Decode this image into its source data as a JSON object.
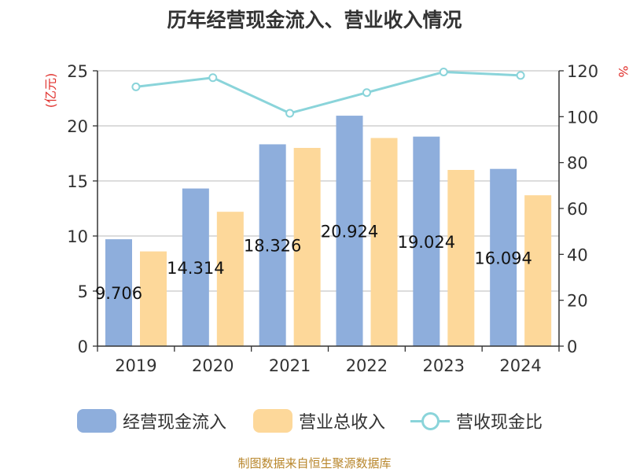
{
  "title": "历年经营现金流入、营业收入情况",
  "source": "制图数据来自恒生聚源数据库",
  "colors": {
    "cash_inflow": "#8eaedc",
    "revenue": "#fdd89a",
    "ratio_line": "#8ad4da",
    "axis_unit": "#e0302c",
    "grid": "#c8c8c8",
    "axis": "#333333"
  },
  "chart_data": {
    "type": "bar+line",
    "title": "历年经营现金流入、营业收入情况",
    "categories": [
      "2019",
      "2020",
      "2021",
      "2022",
      "2023",
      "2024"
    ],
    "left_axis": {
      "unit": "(亿元)",
      "min": 0,
      "max": 25,
      "ticks": [
        "0",
        "5",
        "10",
        "15",
        "20",
        "25"
      ]
    },
    "right_axis": {
      "unit": "%",
      "min": 0,
      "max": 120,
      "ticks": [
        "0",
        "20",
        "40",
        "60",
        "80",
        "100",
        "120"
      ]
    },
    "series": [
      {
        "name": "经营现金流入",
        "type": "bar",
        "axis": "left",
        "values": [
          9.706,
          14.314,
          18.326,
          20.924,
          19.024,
          16.094
        ],
        "labels": [
          "9.706",
          "14.314",
          "18.326",
          "20.924",
          "19.024",
          "16.094"
        ]
      },
      {
        "name": "营业总收入",
        "type": "bar",
        "axis": "left",
        "values": [
          8.6,
          12.2,
          18.0,
          18.9,
          16.0,
          13.7
        ]
      },
      {
        "name": "营收现金比",
        "type": "line",
        "axis": "right",
        "values": [
          113,
          117,
          101.5,
          110.5,
          119.5,
          118
        ]
      }
    ]
  },
  "legend": [
    {
      "label": "经营现金流入",
      "kind": "bar"
    },
    {
      "label": "营业总收入",
      "kind": "bar"
    },
    {
      "label": "营收现金比",
      "kind": "line"
    }
  ]
}
